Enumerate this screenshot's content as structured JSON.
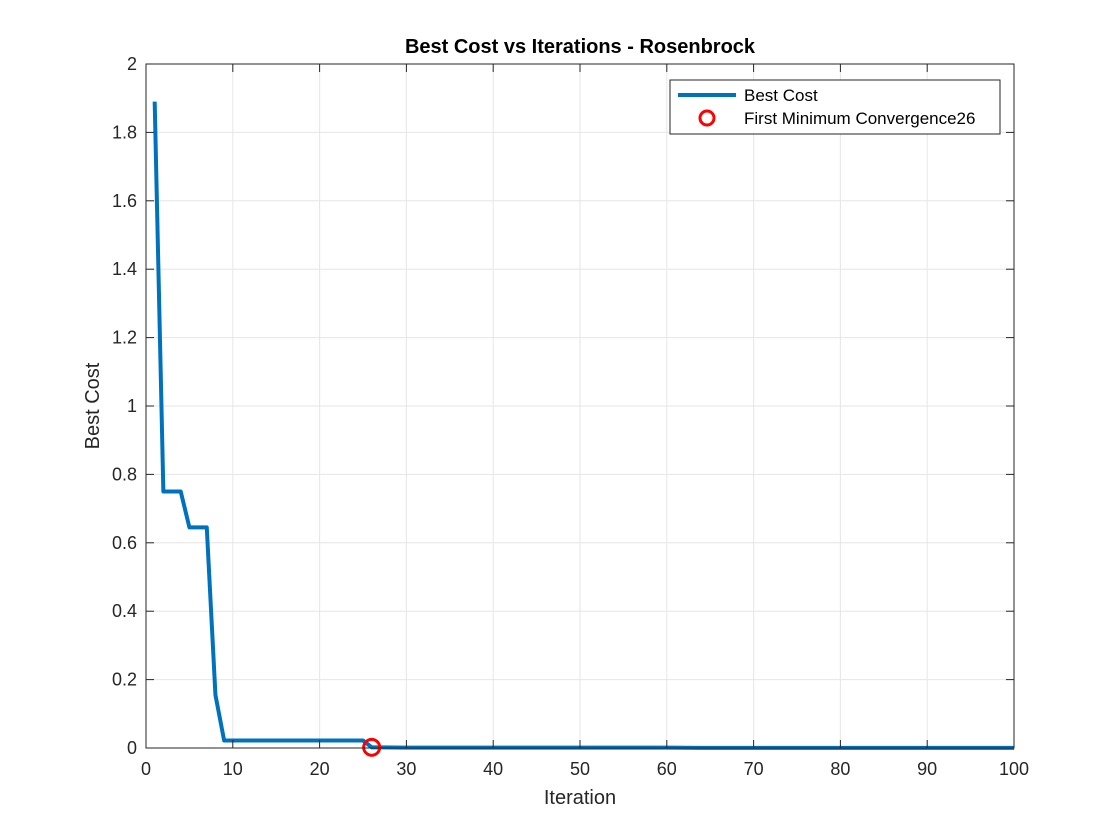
{
  "chart_data": {
    "type": "line",
    "title": "Best Cost vs Iterations - Rosenbrock",
    "xlabel": "Iteration",
    "ylabel": "Best Cost",
    "xlim": [
      0,
      100
    ],
    "ylim": [
      0,
      2
    ],
    "xticks": [
      0,
      10,
      20,
      30,
      40,
      50,
      60,
      70,
      80,
      90,
      100
    ],
    "xtick_labels": [
      "0",
      "10",
      "20",
      "30",
      "40",
      "50",
      "60",
      "70",
      "80",
      "90",
      "100"
    ],
    "yticks": [
      0,
      0.2,
      0.4,
      0.6,
      0.8,
      1,
      1.2,
      1.4,
      1.6,
      1.8,
      2
    ],
    "ytick_labels": [
      "0",
      "0.2",
      "0.4",
      "0.6",
      "0.8",
      "1",
      "1.2",
      "1.4",
      "1.6",
      "1.8",
      "2"
    ],
    "grid": true,
    "legend_position": "top-right",
    "series": [
      {
        "name": "Best Cost",
        "color": "#0072BD",
        "x": [
          1,
          2,
          3,
          4,
          5,
          6,
          7,
          8,
          9,
          10,
          15,
          20,
          25,
          26,
          30,
          40,
          50,
          60,
          64,
          70,
          80,
          90,
          100
        ],
        "y": [
          1.89,
          0.75,
          0.75,
          0.75,
          0.645,
          0.645,
          0.645,
          0.155,
          0.022,
          0.022,
          0.022,
          0.022,
          0.022,
          0.002,
          0.001,
          0.001,
          0.001,
          0.001,
          0.0005,
          0.0005,
          0.0005,
          0.0005,
          0.0005
        ]
      }
    ],
    "markers": [
      {
        "name": "First Minimum Convergence26",
        "color": "#FF0000",
        "marker": "circle",
        "x": 26,
        "y": 0.002
      }
    ]
  }
}
